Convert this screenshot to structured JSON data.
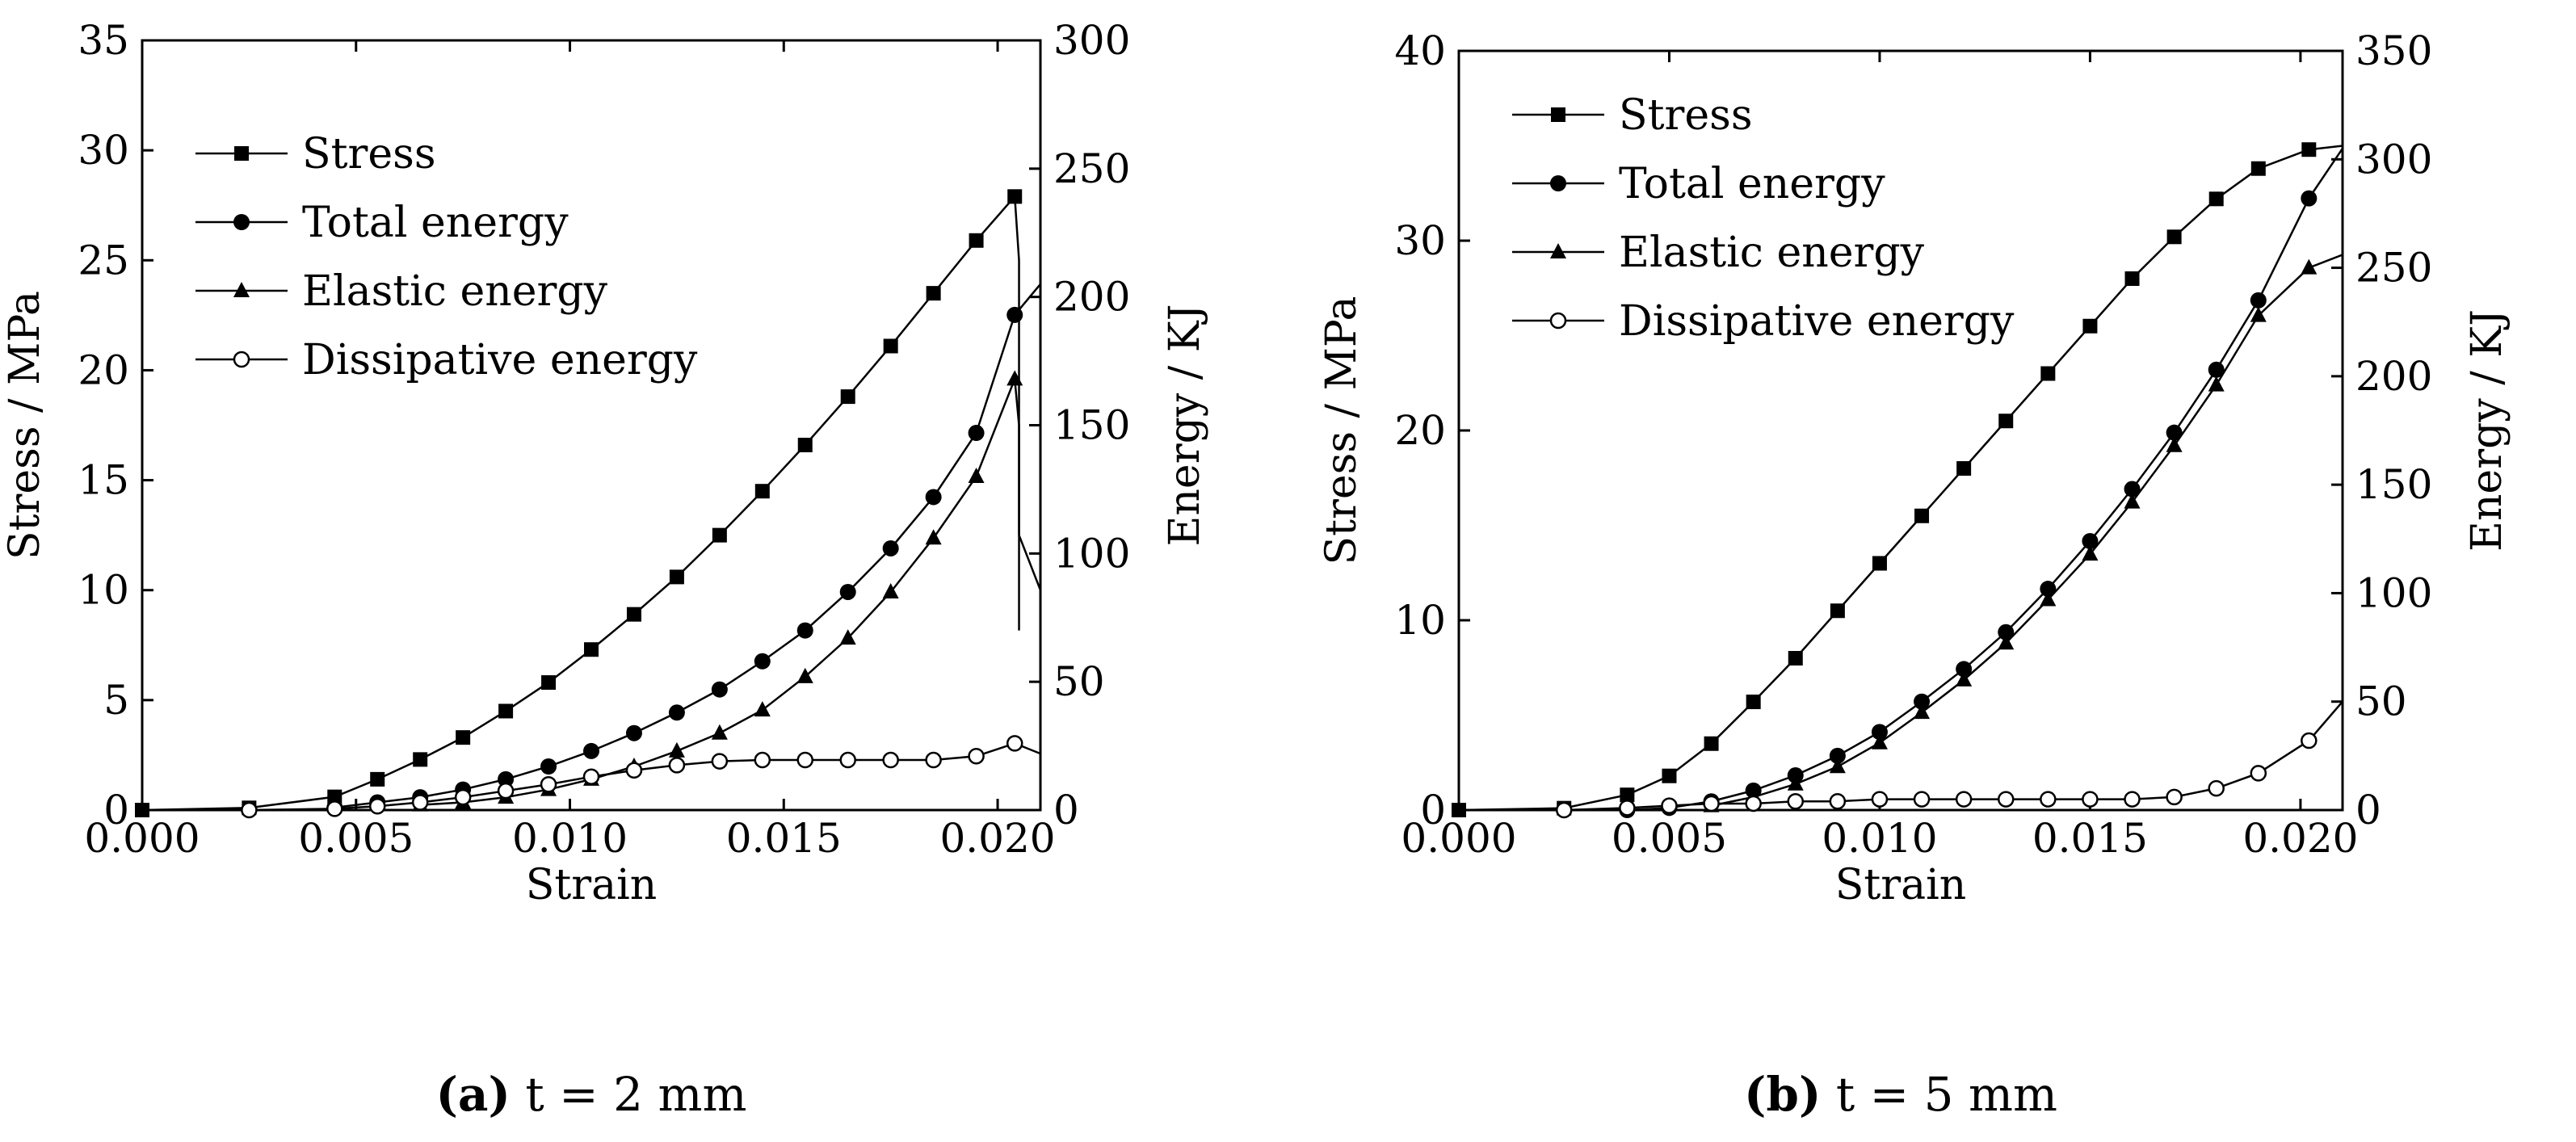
{
  "colors": {
    "line": "#000000",
    "background": "#ffffff"
  },
  "chart_data": [
    {
      "type": "line",
      "caption_label": "(a)",
      "caption_text": " t = 2 mm",
      "xlabel": "Strain",
      "ylabel": "Stress / MPa",
      "y2label": "Energy / KJ",
      "xlim": [
        0,
        0.021
      ],
      "ylim": [
        0,
        35
      ],
      "y2lim": [
        0,
        300
      ],
      "xticks": [
        "0.000",
        "0.005",
        "0.010",
        "0.015",
        "0.020"
      ],
      "yticks": [
        "0",
        "5",
        "10",
        "15",
        "20",
        "25",
        "30",
        "35"
      ],
      "y2ticks": [
        "0",
        "50",
        "100",
        "150",
        "200",
        "250",
        "300"
      ],
      "legend": {
        "position": "top-left",
        "entries": [
          "Stress",
          "Total energy",
          "Elastic energy",
          "Dissipative energy"
        ]
      },
      "series": [
        {
          "name": "Stress",
          "axis": "left",
          "marker": "square",
          "x": [
            0,
            0.0025,
            0.0045,
            0.0055,
            0.0065,
            0.0075,
            0.0085,
            0.0095,
            0.0105,
            0.0115,
            0.0125,
            0.0135,
            0.0145,
            0.0155,
            0.0165,
            0.0175,
            0.0185,
            0.0195,
            0.0204
          ],
          "y": [
            0,
            0.1,
            0.6,
            1.4,
            2.3,
            3.3,
            4.5,
            5.8,
            7.3,
            8.9,
            10.6,
            12.5,
            14.5,
            16.6,
            18.8,
            21.1,
            23.5,
            25.9,
            27.9
          ],
          "after_x": [
            0.0204,
            0.0205,
            0.0205,
            0.021
          ],
          "after_y": [
            27.9,
            25.0,
            12.5,
            10.0
          ]
        },
        {
          "name": "Total energy",
          "axis": "right",
          "marker": "circle",
          "x": [
            0.0045,
            0.0055,
            0.0065,
            0.0075,
            0.0085,
            0.0095,
            0.0105,
            0.0115,
            0.0125,
            0.0135,
            0.0145,
            0.0155,
            0.0165,
            0.0175,
            0.0185,
            0.0195,
            0.0204
          ],
          "y": [
            1,
            3,
            5,
            8,
            12,
            17,
            23,
            30,
            38,
            47,
            58,
            70,
            85,
            102,
            122,
            147,
            193
          ],
          "after_x": [
            0.0204,
            0.021
          ],
          "after_y": [
            193,
            205
          ]
        },
        {
          "name": "Elastic energy",
          "axis": "right",
          "marker": "triangle",
          "x": [
            0.0065,
            0.0075,
            0.0085,
            0.0095,
            0.0105,
            0.0115,
            0.0125,
            0.0135,
            0.0145,
            0.0155,
            0.0165,
            0.0175,
            0.0185,
            0.0195,
            0.0204
          ],
          "y": [
            2,
            3,
            5,
            8,
            12,
            17,
            23,
            30,
            39,
            52,
            67,
            85,
            106,
            130,
            168
          ],
          "after_x": [
            0.0204,
            0.0205,
            0.0205
          ],
          "after_y": [
            168,
            150,
            70
          ]
        },
        {
          "name": "Dissipative energy",
          "axis": "right",
          "marker": "open-circle",
          "x": [
            0.0025,
            0.0045,
            0.0055,
            0.0065,
            0.0075,
            0.0085,
            0.0095,
            0.0105,
            0.0115,
            0.0125,
            0.0135,
            0.0145,
            0.0155,
            0.0165,
            0.0175,
            0.0185,
            0.0195,
            0.0204
          ],
          "y": [
            0,
            0.5,
            1.5,
            3,
            5,
            7.5,
            10,
            13,
            15.5,
            17.5,
            19,
            19.5,
            19.5,
            19.5,
            19.5,
            19.5,
            21,
            26
          ],
          "after_x": [
            0.0204,
            0.021
          ],
          "after_y": [
            26,
            22
          ]
        }
      ]
    },
    {
      "type": "line",
      "caption_label": "(b)",
      "caption_text": " t = 5 mm",
      "xlabel": "Strain",
      "ylabel": "Stress / MPa",
      "y2label": "Energy / KJ",
      "xlim": [
        0,
        0.021
      ],
      "ylim": [
        0,
        40
      ],
      "y2lim": [
        0,
        350
      ],
      "xticks": [
        "0.000",
        "0.005",
        "0.010",
        "0.015",
        "0.020"
      ],
      "yticks": [
        "0",
        "10",
        "20",
        "30",
        "40"
      ],
      "y2ticks": [
        "0",
        "50",
        "100",
        "150",
        "200",
        "250",
        "300",
        "350"
      ],
      "legend": {
        "position": "top-left",
        "entries": [
          "Stress",
          "Total energy",
          "Elastic energy",
          "Dissipative energy"
        ]
      },
      "series": [
        {
          "name": "Stress",
          "axis": "left",
          "marker": "square",
          "x": [
            0,
            0.0025,
            0.004,
            0.005,
            0.006,
            0.007,
            0.008,
            0.009,
            0.01,
            0.011,
            0.012,
            0.013,
            0.014,
            0.015,
            0.016,
            0.017,
            0.018,
            0.019,
            0.0202
          ],
          "y": [
            0,
            0.1,
            0.8,
            1.8,
            3.5,
            5.7,
            8.0,
            10.5,
            13.0,
            15.5,
            18.0,
            20.5,
            23.0,
            25.5,
            28.0,
            30.2,
            32.2,
            33.8,
            34.8
          ],
          "after_x": [
            0.0202,
            0.021,
            0.021
          ],
          "after_y": [
            34.8,
            35.0,
            0
          ]
        },
        {
          "name": "Total energy",
          "axis": "right",
          "marker": "circle",
          "x": [
            0.004,
            0.005,
            0.006,
            0.007,
            0.008,
            0.009,
            0.01,
            0.011,
            0.012,
            0.013,
            0.014,
            0.015,
            0.016,
            0.017,
            0.018,
            0.019,
            0.0202
          ],
          "y": [
            0,
            1,
            4,
            9,
            16,
            25,
            36,
            50,
            65,
            82,
            102,
            124,
            148,
            174,
            203,
            235,
            282
          ],
          "after_x": [
            0.0202,
            0.021,
            0.021
          ],
          "after_y": [
            282,
            305,
            260
          ]
        },
        {
          "name": "Elastic energy",
          "axis": "right",
          "marker": "triangle",
          "x": [
            0.006,
            0.007,
            0.008,
            0.009,
            0.01,
            0.011,
            0.012,
            0.013,
            0.014,
            0.015,
            0.016,
            0.017,
            0.018,
            0.019,
            0.0202
          ],
          "y": [
            2,
            6,
            12,
            20,
            31,
            45,
            60,
            77,
            97,
            118,
            142,
            168,
            196,
            228,
            250
          ],
          "after_x": [
            0.0202,
            0.021,
            0.021
          ],
          "after_y": [
            250,
            256,
            0
          ]
        },
        {
          "name": "Dissipative energy",
          "axis": "right",
          "marker": "open-circle",
          "x": [
            0.0025,
            0.004,
            0.005,
            0.006,
            0.007,
            0.008,
            0.009,
            0.01,
            0.011,
            0.012,
            0.013,
            0.014,
            0.015,
            0.016,
            0.017,
            0.018,
            0.019,
            0.0202
          ],
          "y": [
            0,
            1,
            2,
            3,
            3,
            4,
            4,
            5,
            5,
            5,
            5,
            5,
            5,
            5,
            6,
            10,
            17,
            32
          ],
          "after_x": [
            0.0202,
            0.021
          ],
          "after_y": [
            32,
            50
          ]
        }
      ]
    }
  ]
}
